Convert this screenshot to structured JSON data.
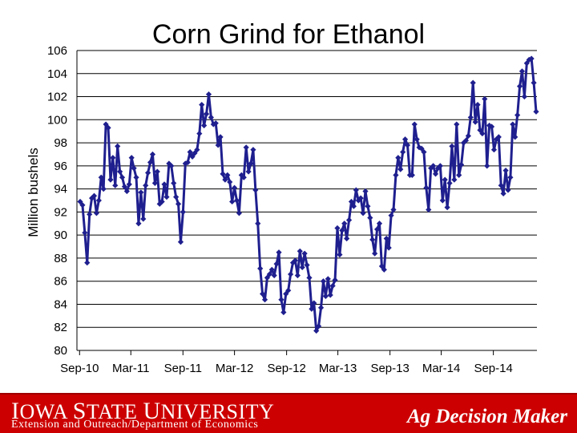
{
  "chart_data": {
    "type": "line",
    "title": "Corn Grind for Ethanol",
    "xlabel": "",
    "ylabel": "Million bushels",
    "ylim": [
      80,
      106
    ],
    "yticks": [
      80,
      82,
      84,
      86,
      88,
      90,
      92,
      94,
      96,
      98,
      100,
      102,
      104,
      106
    ],
    "x_tick_labels": [
      "Sep-10",
      "Mar-11",
      "Sep-11",
      "Mar-12",
      "Sep-12",
      "Mar-13",
      "Sep-13",
      "Mar-14",
      "Sep-14"
    ],
    "x_start": "2010-09-03",
    "x_end": "2015-01-30",
    "grid": true,
    "frequency": "weekly",
    "series": [
      {
        "name": "",
        "color": "#1f1f8f",
        "marker": "diamond",
        "values": [
          92.9,
          92.6,
          90.2,
          87.6,
          91.8,
          93.2,
          93.4,
          91.9,
          93.0,
          95.0,
          94.0,
          99.6,
          99.3,
          94.8,
          96.7,
          94.3,
          97.7,
          95.5,
          95.0,
          94.2,
          93.8,
          94.4,
          96.7,
          95.8,
          95.0,
          91.0,
          93.7,
          91.4,
          94.3,
          95.4,
          96.3,
          97.0,
          94.5,
          95.5,
          92.7,
          92.9,
          94.4,
          93.3,
          96.2,
          96.0,
          94.5,
          93.3,
          92.7,
          89.4,
          92.0,
          96.2,
          96.3,
          97.2,
          96.8,
          97.1,
          97.4,
          98.8,
          101.3,
          99.5,
          100.5,
          102.2,
          100.2,
          99.6,
          99.7,
          97.8,
          98.5,
          95.3,
          94.8,
          95.2,
          94.6,
          92.9,
          94.1,
          93.0,
          91.9,
          95.2,
          95.0,
          97.6,
          95.5,
          96.2,
          97.4,
          93.9,
          91.0,
          87.1,
          84.9,
          84.4,
          86.3,
          86.6,
          87.0,
          86.5,
          87.5,
          88.5,
          84.4,
          83.3,
          84.9,
          85.2,
          86.6,
          87.6,
          87.8,
          86.5,
          88.6,
          87.2,
          88.4,
          87.4,
          86.3,
          83.6,
          84.1,
          81.7,
          82.1,
          83.7,
          86.0,
          84.7,
          86.2,
          84.8,
          85.6,
          86.1,
          90.6,
          88.3,
          90.4,
          91.0,
          89.7,
          91.3,
          92.9,
          92.5,
          93.9,
          93.0,
          93.2,
          91.9,
          93.8,
          92.5,
          91.5,
          89.6,
          88.4,
          90.5,
          91.0,
          87.3,
          87.0,
          89.7,
          88.9,
          91.7,
          92.2,
          95.2,
          96.7,
          95.7,
          97.2,
          98.3,
          97.8,
          95.2,
          95.2,
          99.6,
          98.3,
          97.6,
          97.5,
          97.2,
          94.1,
          92.2,
          95.8,
          96.0,
          95.3,
          95.8,
          96.0,
          93.0,
          94.8,
          92.4,
          94.5,
          97.7,
          94.8,
          99.6,
          95.2,
          96.1,
          98.0,
          98.2,
          98.6,
          100.2,
          103.2,
          99.8,
          101.3,
          99.1,
          98.8,
          101.8,
          96.0,
          99.5,
          99.4,
          97.4,
          98.3,
          98.5,
          94.3,
          93.6,
          95.6,
          93.9,
          95.0,
          99.6,
          98.5,
          100.4,
          102.9,
          104.2,
          102.0,
          104.9,
          105.2,
          105.3,
          103.2,
          100.7
        ]
      }
    ]
  }
}
